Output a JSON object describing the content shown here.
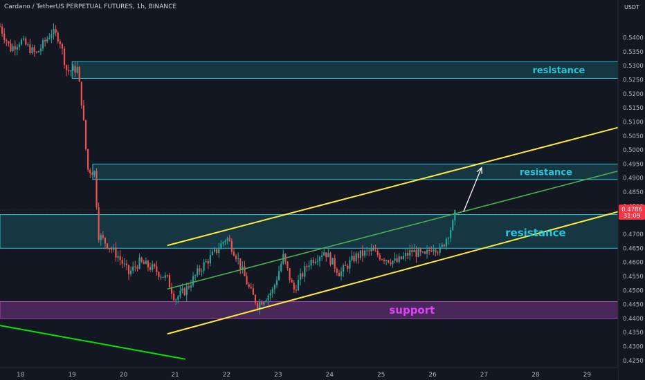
{
  "header": {
    "title": "Cardano / TetherUS PERPETUAL FUTURES, 1h, BINANCE",
    "currency": "USDT"
  },
  "price_tag": {
    "price": "0.4786",
    "countdown": "31:09",
    "color": "#f23645"
  },
  "colors": {
    "background": "#131722",
    "bull": "#26a69a",
    "bear": "#ef5350",
    "zone_cyan": "#26c6da",
    "zone_support": "#ab47bc",
    "channel": "#ffeb3b",
    "midline": "#4caf50",
    "trendline": "#00e600",
    "arrow": "#ffffff",
    "label_cyan": "#26c6da",
    "label_support": "#e040fb"
  },
  "icons": [
    "arrow-up-right-icon"
  ],
  "chart_data": {
    "type": "candlestick",
    "symbol": "ADAUSDT.P",
    "interval": "1h",
    "x_axis": {
      "ticks": [
        {
          "label": "18",
          "day": 18
        },
        {
          "label": "19",
          "day": 19
        },
        {
          "label": "20",
          "day": 20
        },
        {
          "label": "21",
          "day": 21
        },
        {
          "label": "22",
          "day": 22
        },
        {
          "label": "23",
          "day": 23
        },
        {
          "label": "24",
          "day": 24
        },
        {
          "label": "25",
          "day": 25
        },
        {
          "label": "26",
          "day": 26
        },
        {
          "label": "27",
          "day": 27
        },
        {
          "label": "28",
          "day": 28
        },
        {
          "label": "29",
          "day": 29
        }
      ],
      "range": [
        17.6,
        29.6
      ]
    },
    "y_axis": {
      "range": [
        0.4225,
        0.5485
      ],
      "ticks": [
        "0.5400",
        "0.5350",
        "0.5300",
        "0.5250",
        "0.5200",
        "0.5150",
        "0.5100",
        "0.5050",
        "0.5000",
        "0.4950",
        "0.4900",
        "0.4850",
        "0.4800",
        "0.4700",
        "0.4650",
        "0.4600",
        "0.4550",
        "0.4500",
        "0.4450",
        "0.4400",
        "0.4350",
        "0.4300",
        "0.4250"
      ]
    },
    "candles_ohlc_keyframes": [
      {
        "day": 17.6,
        "price": 0.544
      },
      {
        "day": 17.8,
        "price": 0.536
      },
      {
        "day": 18.0,
        "price": 0.539
      },
      {
        "day": 18.3,
        "price": 0.534
      },
      {
        "day": 18.6,
        "price": 0.542
      },
      {
        "day": 18.75,
        "price": 0.54
      },
      {
        "day": 18.9,
        "price": 0.528
      },
      {
        "day": 19.1,
        "price": 0.529
      },
      {
        "day": 19.2,
        "price": 0.515
      },
      {
        "day": 19.3,
        "price": 0.493
      },
      {
        "day": 19.45,
        "price": 0.492
      },
      {
        "day": 19.5,
        "price": 0.47
      },
      {
        "day": 19.7,
        "price": 0.466
      },
      {
        "day": 19.9,
        "price": 0.462
      },
      {
        "day": 20.1,
        "price": 0.456
      },
      {
        "day": 20.3,
        "price": 0.46
      },
      {
        "day": 20.55,
        "price": 0.458
      },
      {
        "day": 20.85,
        "price": 0.454
      },
      {
        "day": 21.0,
        "price": 0.447
      },
      {
        "day": 21.2,
        "price": 0.45
      },
      {
        "day": 21.5,
        "price": 0.458
      },
      {
        "day": 21.8,
        "price": 0.464
      },
      {
        "day": 22.0,
        "price": 0.469
      },
      {
        "day": 22.2,
        "price": 0.462
      },
      {
        "day": 22.45,
        "price": 0.45
      },
      {
        "day": 22.6,
        "price": 0.445
      },
      {
        "day": 22.9,
        "price": 0.45
      },
      {
        "day": 23.1,
        "price": 0.462
      },
      {
        "day": 23.3,
        "price": 0.45
      },
      {
        "day": 23.6,
        "price": 0.46
      },
      {
        "day": 23.9,
        "price": 0.464
      },
      {
        "day": 24.2,
        "price": 0.456
      },
      {
        "day": 24.5,
        "price": 0.462
      },
      {
        "day": 24.8,
        "price": 0.464
      },
      {
        "day": 25.0,
        "price": 0.462
      },
      {
        "day": 25.3,
        "price": 0.46
      },
      {
        "day": 25.6,
        "price": 0.464
      },
      {
        "day": 25.85,
        "price": 0.462
      },
      {
        "day": 26.0,
        "price": 0.466
      },
      {
        "day": 26.15,
        "price": 0.464
      },
      {
        "day": 26.3,
        "price": 0.47
      },
      {
        "day": 26.4,
        "price": 0.474
      },
      {
        "day": 26.45,
        "price": 0.4786
      }
    ],
    "zones": [
      {
        "name": "resistance",
        "kind": "resistance",
        "y_range": [
          0.5255,
          0.5315
        ],
        "x_start_day": 19.0,
        "label_day": 28.45,
        "label_price": 0.5285,
        "label_size": 13
      },
      {
        "name": "resistance",
        "kind": "resistance",
        "y_range": [
          0.4895,
          0.495
        ],
        "x_start_day": 19.4,
        "label_day": 28.2,
        "label_price": 0.4921,
        "label_size": 13
      },
      {
        "name": "resistance",
        "kind": "resistance",
        "y_range": [
          0.465,
          0.477
        ],
        "x_start_day": 17.6,
        "label_day": 28.0,
        "label_price": 0.4705,
        "label_size": 15
      },
      {
        "name": "support",
        "kind": "support",
        "y_range": [
          0.44,
          0.446
        ],
        "x_start_day": 17.6,
        "label_day": 25.6,
        "label_price": 0.443,
        "label_size": 15
      }
    ],
    "channel": {
      "upper": [
        [
          20.85,
          0.466
        ],
        [
          29.6,
          0.508
        ]
      ],
      "lower": [
        [
          20.85,
          0.4345
        ],
        [
          29.6,
          0.478
        ]
      ],
      "mid": [
        [
          20.85,
          0.4505
        ],
        [
          29.6,
          0.4925
        ]
      ]
    },
    "trendline": [
      [
        17.6,
        0.4375
      ],
      [
        21.2,
        0.4255
      ]
    ],
    "projection_arrow": [
      [
        26.6,
        0.478
      ],
      [
        26.95,
        0.4937
      ]
    ],
    "grid": false,
    "last_price_line": 0.4786
  }
}
